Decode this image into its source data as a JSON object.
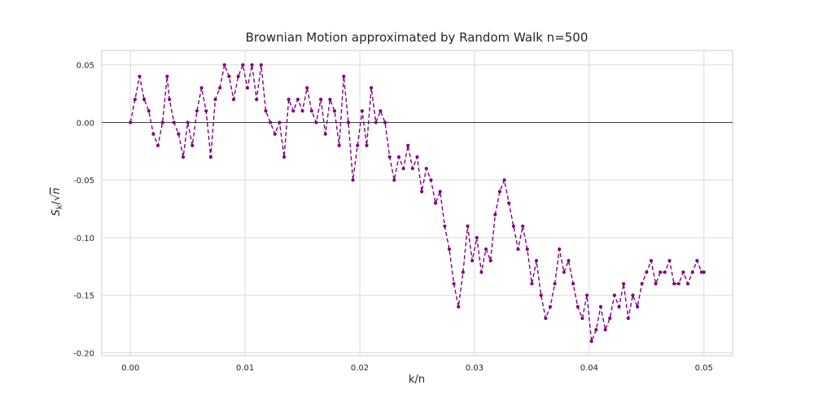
{
  "chart_data": {
    "type": "line",
    "title": "Brownian Motion approximated by Random Walk n=500",
    "xlabel": "k/n",
    "ylabel_main": "S",
    "ylabel_sub": "k",
    "ylabel_slash": "/",
    "ylabel_radical": "√",
    "ylabel_tail": "n",
    "xlim": [
      -0.0025,
      0.0525
    ],
    "ylim": [
      -0.2025,
      0.0625
    ],
    "xticks": [
      0.0,
      0.01,
      0.02,
      0.03,
      0.04,
      0.05
    ],
    "xtick_labels": [
      "0.00",
      "0.01",
      "0.02",
      "0.03",
      "0.04",
      "0.05"
    ],
    "yticks": [
      0.05,
      0.0,
      -0.05,
      -0.1,
      -0.15,
      -0.2
    ],
    "ytick_labels": [
      "0.05",
      "0.00",
      "-0.05",
      "-0.10",
      "-0.15",
      "-0.20"
    ],
    "grid": true,
    "zero_line": true,
    "line_style": "dashed",
    "marker": "dot",
    "color": "#800080",
    "n": 500,
    "series": [
      {
        "x": [
          0,
          0.0004,
          0.0008,
          0.0012,
          0.0016,
          0.002,
          0.0024,
          0.0028,
          0.0032,
          0.0034,
          0.0038,
          0.0042,
          0.0046,
          0.005,
          0.0054,
          0.0058,
          0.0062,
          0.0066,
          0.007,
          0.0074,
          0.0078,
          0.0082,
          0.0086,
          0.009,
          0.0094,
          0.0098,
          0.0102,
          0.0106,
          0.011,
          0.0114,
          0.0118,
          0.0122,
          0.0126,
          0.013,
          0.0134,
          0.0138,
          0.0142,
          0.0146,
          0.015,
          0.0154,
          0.0158,
          0.0162,
          0.0166,
          0.017,
          0.0174,
          0.0178,
          0.0182,
          0.0186,
          0.019,
          0.0194,
          0.0198,
          0.0202,
          0.0206,
          0.021,
          0.0214,
          0.0218,
          0.0222,
          0.0226,
          0.023,
          0.0234,
          0.0238,
          0.0242,
          0.0246,
          0.025,
          0.0254,
          0.0258,
          0.0262,
          0.0266,
          0.027,
          0.0274,
          0.0278,
          0.0282,
          0.0286,
          0.029,
          0.0294,
          0.0298,
          0.0302,
          0.0306,
          0.031,
          0.0314,
          0.0318,
          0.0322,
          0.0326,
          0.033,
          0.0334,
          0.0338,
          0.0342,
          0.0346,
          0.035,
          0.0354,
          0.0358,
          0.0362,
          0.0366,
          0.037,
          0.0374,
          0.0378,
          0.0382,
          0.0386,
          0.039,
          0.0394,
          0.0398,
          0.0402,
          0.0406,
          0.041,
          0.0414,
          0.0418,
          0.0422,
          0.0426,
          0.043,
          0.0434,
          0.0438,
          0.0442,
          0.0446,
          0.045,
          0.0454,
          0.0458,
          0.0462,
          0.0466,
          0.047,
          0.0474,
          0.0478,
          0.0482,
          0.0486,
          0.049,
          0.0494,
          0.0498,
          0.05
        ],
        "y": [
          0,
          0.02,
          0.04,
          0.02,
          0.01,
          -0.01,
          -0.02,
          0.0,
          0.04,
          0.02,
          0.0,
          -0.01,
          -0.03,
          0.0,
          -0.02,
          0.01,
          0.03,
          0.01,
          -0.03,
          0.02,
          0.03,
          0.05,
          0.04,
          0.02,
          0.04,
          0.05,
          0.03,
          0.05,
          0.02,
          0.05,
          0.01,
          0.0,
          -0.01,
          0.0,
          -0.03,
          0.02,
          0.01,
          0.02,
          0.01,
          0.03,
          0.01,
          0.0,
          0.02,
          -0.01,
          0.02,
          0.01,
          -0.02,
          0.04,
          0.0,
          -0.05,
          -0.02,
          0.01,
          -0.02,
          0.03,
          0.0,
          0.01,
          0.0,
          -0.03,
          -0.05,
          -0.03,
          -0.04,
          -0.02,
          -0.04,
          -0.03,
          -0.06,
          -0.04,
          -0.05,
          -0.07,
          -0.06,
          -0.09,
          -0.11,
          -0.14,
          -0.16,
          -0.13,
          -0.09,
          -0.12,
          -0.1,
          -0.13,
          -0.11,
          -0.12,
          -0.08,
          -0.06,
          -0.05,
          -0.07,
          -0.09,
          -0.11,
          -0.09,
          -0.11,
          -0.14,
          -0.12,
          -0.15,
          -0.17,
          -0.16,
          -0.14,
          -0.11,
          -0.13,
          -0.12,
          -0.14,
          -0.16,
          -0.17,
          -0.15,
          -0.19,
          -0.18,
          -0.16,
          -0.18,
          -0.17,
          -0.15,
          -0.16,
          -0.14,
          -0.17,
          -0.15,
          -0.16,
          -0.14,
          -0.13,
          -0.12,
          -0.14,
          -0.13,
          -0.13,
          -0.12,
          -0.14,
          -0.14,
          -0.13,
          -0.14,
          -0.13,
          -0.12,
          -0.13,
          -0.13
        ]
      }
    ]
  }
}
